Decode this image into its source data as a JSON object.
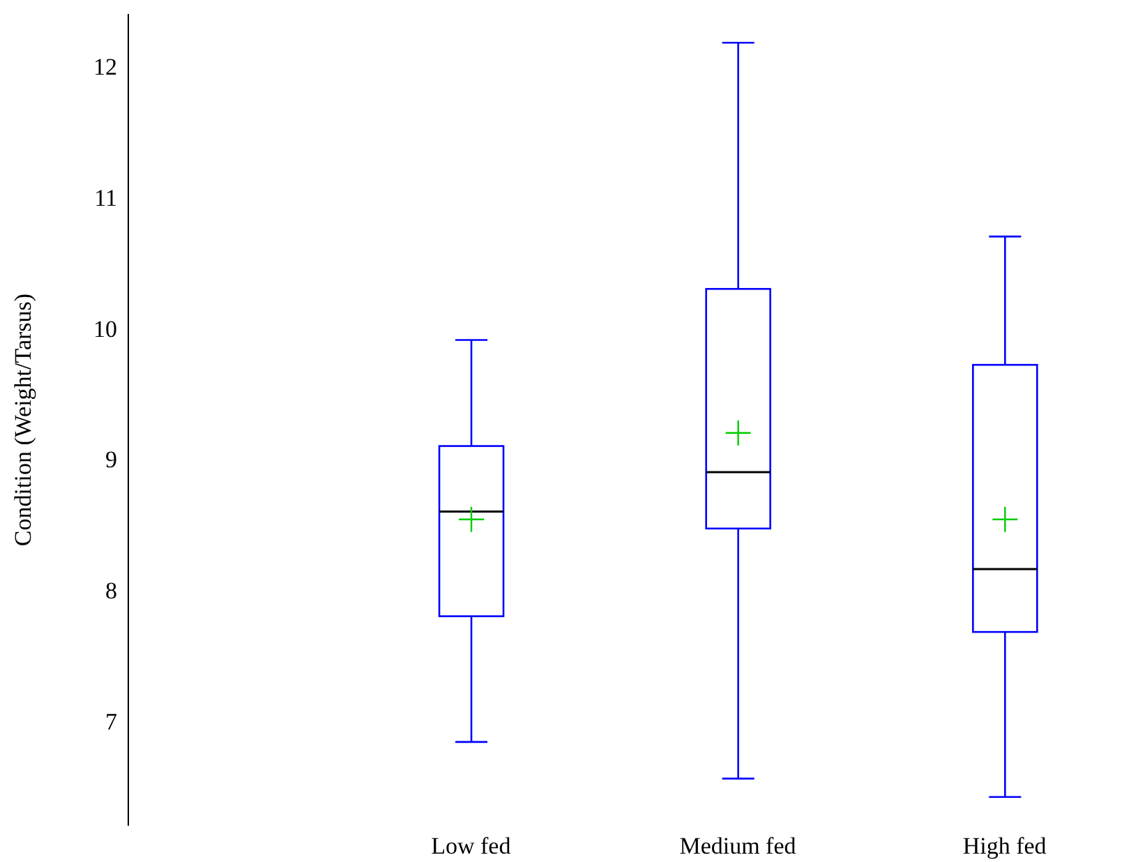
{
  "chart_data": {
    "type": "box",
    "ylabel": "Condition (Weight/Tarsus)",
    "categories": [
      "Low fed",
      "Medium fed",
      "High fed"
    ],
    "color": "#0000ff",
    "ylim": [
      6.2,
      12.4
    ],
    "yticks": [
      7,
      8,
      9,
      10,
      11,
      12
    ],
    "grid": false,
    "legend": false,
    "boxes": [
      {
        "low": 6.84,
        "q1": 7.8,
        "median": 8.6,
        "q3": 9.1,
        "high": 9.91,
        "mean": 8.54
      },
      {
        "low": 6.56,
        "q1": 8.47,
        "median": 8.9,
        "q3": 10.3,
        "high": 12.18,
        "mean": 9.2
      },
      {
        "low": 6.42,
        "q1": 7.68,
        "median": 8.16,
        "q3": 9.72,
        "high": 10.7,
        "mean": 8.54
      }
    ]
  }
}
